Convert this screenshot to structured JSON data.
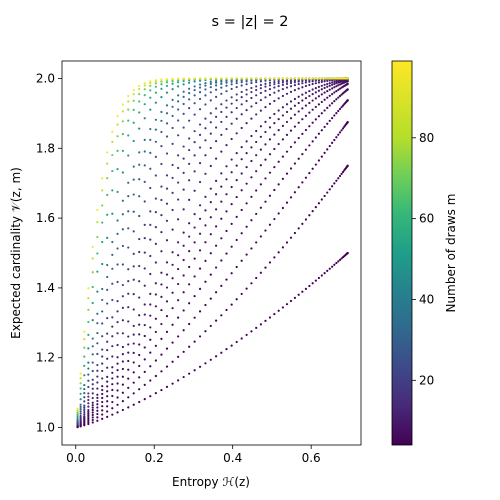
{
  "chart_data": {
    "type": "scatter",
    "title": "s = |z| =  2",
    "xlabel": "Entropy ℋ(z)",
    "ylabel": "Expected cardinality 𝒱(z, m)",
    "xlim": [
      -0.035,
      0.727
    ],
    "ylim": [
      0.95,
      2.05
    ],
    "xticks": [
      0.0,
      0.2,
      0.4,
      0.6
    ],
    "xtick_labels": [
      "0.0",
      "0.2",
      "0.4",
      "0.6"
    ],
    "yticks": [
      1.0,
      1.2,
      1.4,
      1.6,
      1.8,
      2.0
    ],
    "ytick_labels": [
      "1.0",
      "1.2",
      "1.4",
      "1.6",
      "1.8",
      "2.0"
    ],
    "grid": false,
    "x_domain": [
      0.0,
      0.693
    ],
    "y_domain": [
      1.0,
      2.0
    ],
    "m_values": [
      2,
      3,
      4,
      5,
      6,
      7,
      8,
      9,
      10,
      12,
      14,
      16,
      18,
      20,
      24,
      28,
      32,
      36,
      40,
      50,
      60,
      70,
      80,
      90,
      99
    ],
    "colorbar": {
      "label": "Number of draws m",
      "colormap": "viridis",
      "range": [
        4,
        99
      ],
      "ticks": [
        20,
        40,
        60,
        80
      ],
      "tick_labels": [
        "20",
        "40",
        "60",
        "80"
      ]
    }
  }
}
